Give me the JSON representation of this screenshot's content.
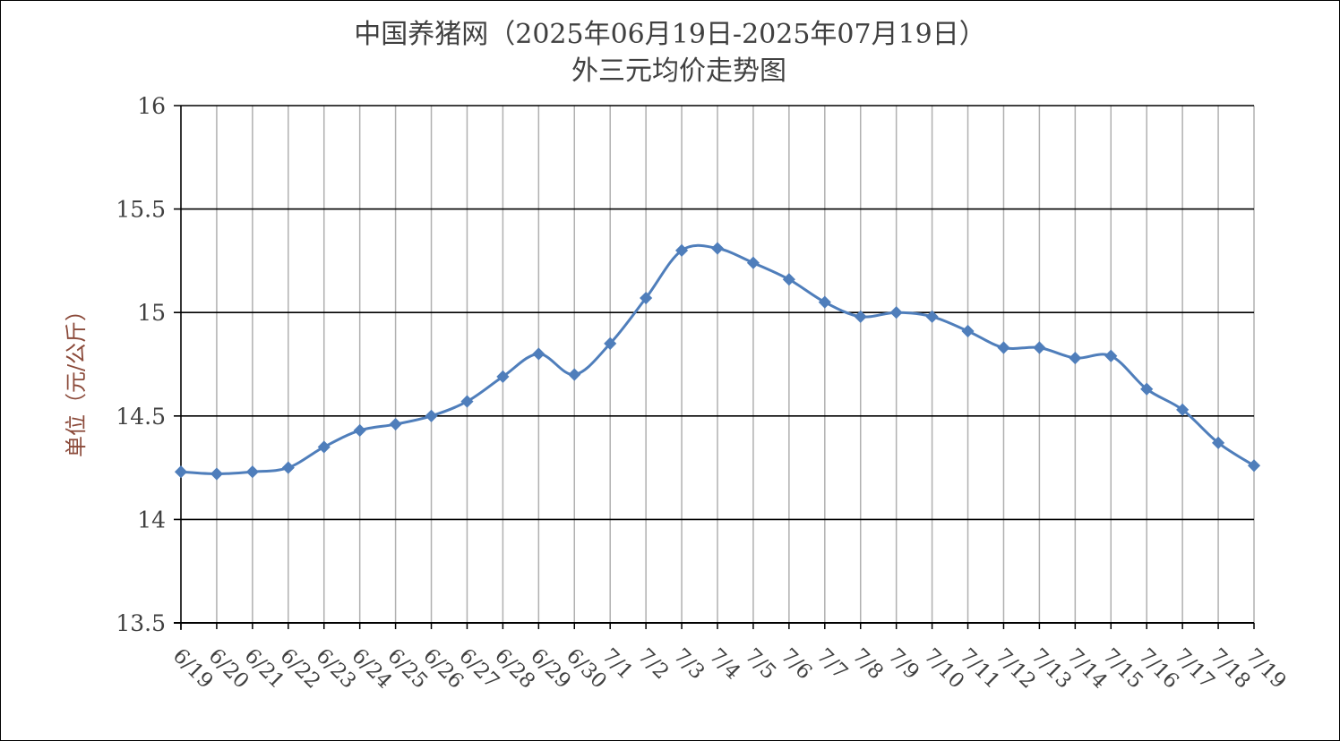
{
  "chart_data": {
    "type": "line",
    "title": "中国养猪网（2025年06月19日-2025年07月19日）",
    "subtitle": "外三元均价走势图",
    "xlabel": "",
    "ylabel": "单位（元/公斤）",
    "ylim": [
      13.5,
      16
    ],
    "yticks": [
      "16",
      "15.5",
      "15",
      "14.5",
      "14",
      "13.5"
    ],
    "ytick_values": [
      16,
      15.5,
      15,
      14.5,
      14,
      13.5
    ],
    "grid": "horizontal and vertical",
    "legend": "none",
    "line_color": "#4F7EBB",
    "categories": [
      "6/19",
      "6/20",
      "6/21",
      "6/22",
      "6/23",
      "6/24",
      "6/25",
      "6/26",
      "6/27",
      "6/28",
      "6/29",
      "6/30",
      "7/1",
      "7/2",
      "7/3",
      "7/4",
      "7/5",
      "7/6",
      "7/7",
      "7/8",
      "7/9",
      "7/10",
      "7/11",
      "7/12",
      "7/13",
      "7/14",
      "7/15",
      "7/16",
      "7/17",
      "7/18",
      "7/19"
    ],
    "values": [
      14.23,
      14.22,
      14.23,
      14.25,
      14.35,
      14.43,
      14.46,
      14.5,
      14.57,
      14.69,
      14.8,
      14.7,
      14.85,
      15.07,
      15.3,
      15.31,
      15.24,
      15.16,
      15.05,
      14.98,
      15.0,
      14.98,
      14.91,
      14.83,
      14.83,
      14.78,
      14.79,
      14.63,
      14.53,
      14.37,
      14.26
    ]
  }
}
